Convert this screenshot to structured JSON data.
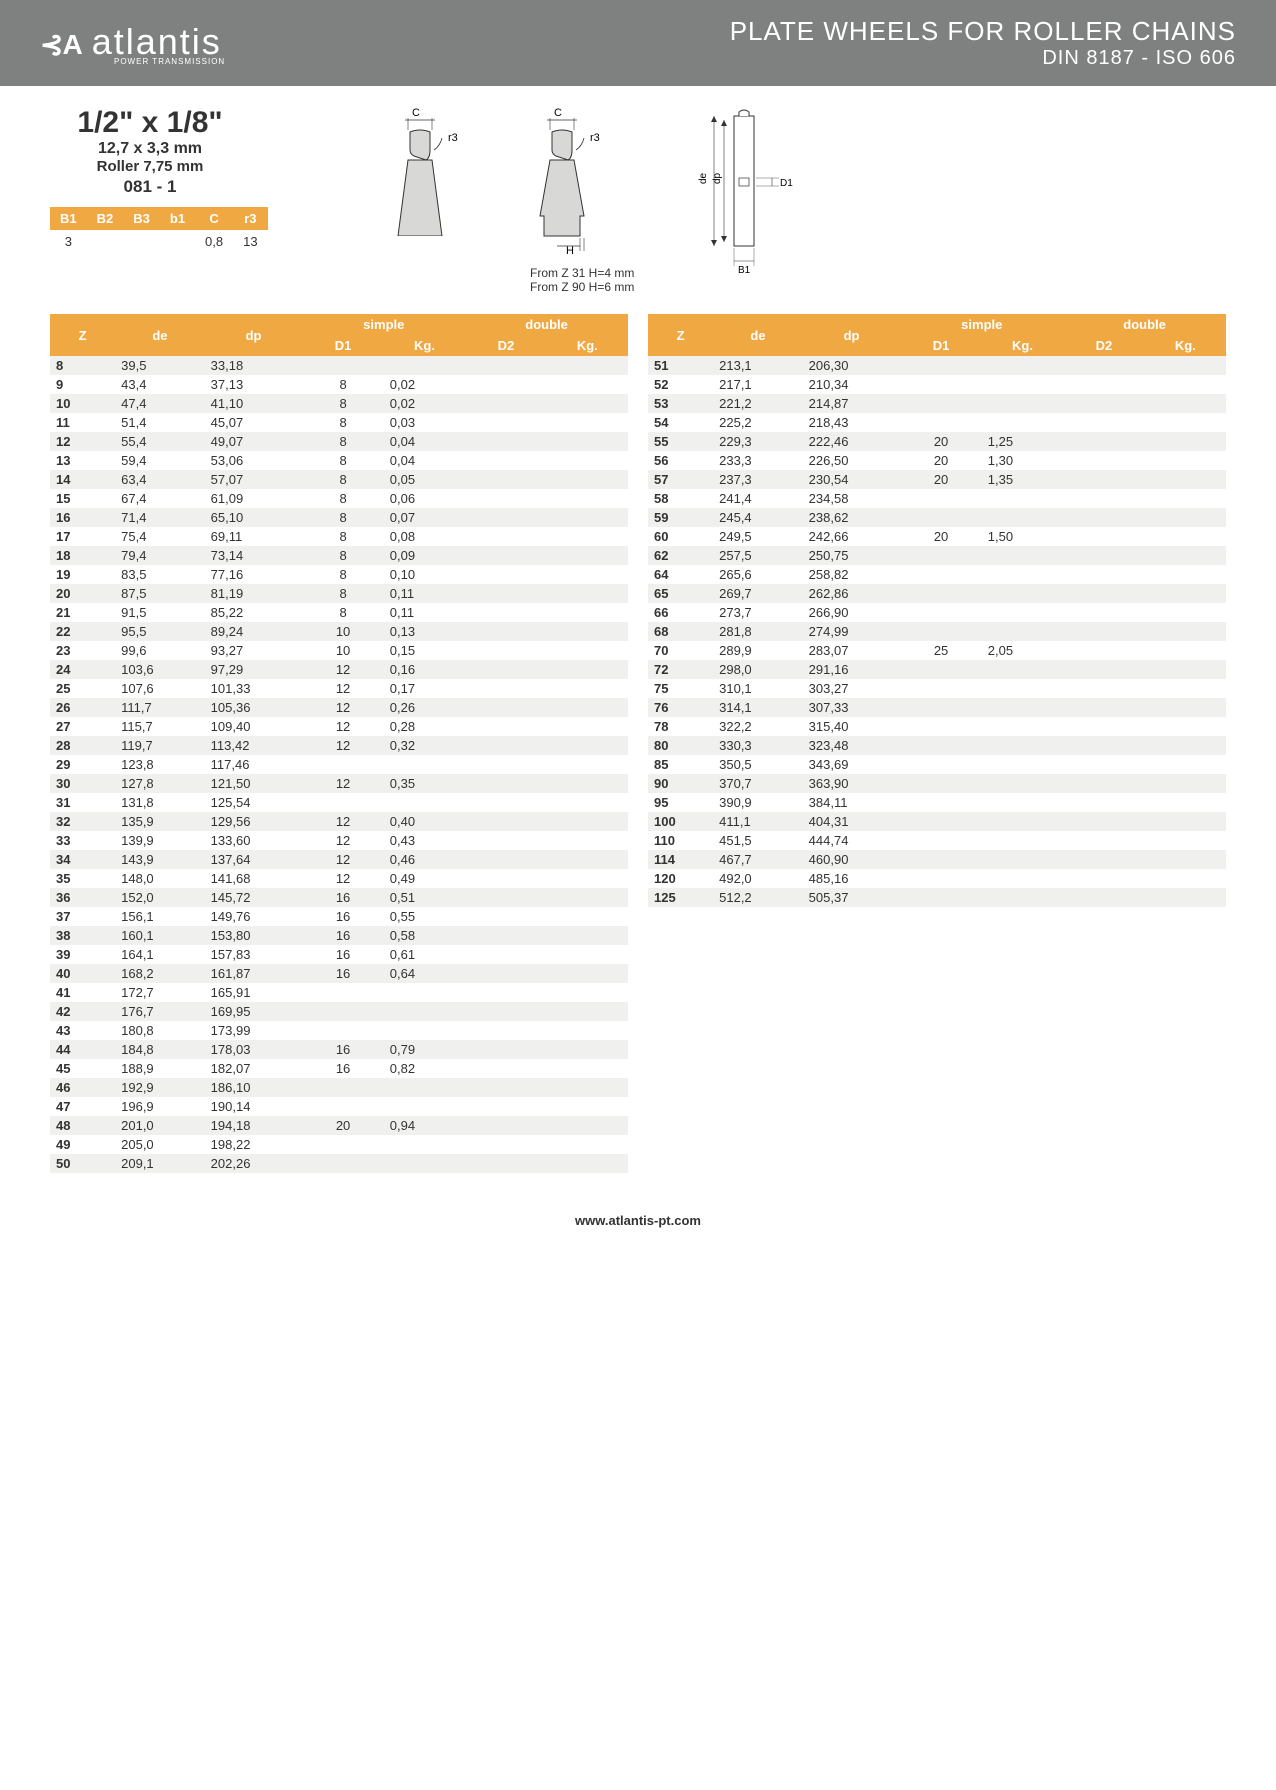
{
  "header": {
    "logo_mark": "⊰A",
    "logo_text": "atlantis",
    "logo_sub": "POWER TRANSMISSION",
    "title": "PLATE WHEELS FOR ROLLER CHAINS",
    "subtitle": "DIN 8187 - ISO 606"
  },
  "spec": {
    "main": "1/2\" x 1/8\"",
    "sub": "12,7 x 3,3 mm",
    "roller": "Roller 7,75 mm",
    "code": "081 - 1"
  },
  "diagram_labels": {
    "c": "C",
    "r3": "r3",
    "h": "H",
    "de": "de",
    "dp": "dp",
    "d1": "D1",
    "b1": "B1",
    "note1": "From Z 31 H=4 mm",
    "note2": "From Z 90 H=6 mm"
  },
  "params": {
    "headers": [
      "B1",
      "B2",
      "B3",
      "b1",
      "C",
      "r3"
    ],
    "values": [
      "3",
      "",
      "",
      "",
      "0,8",
      "13"
    ]
  },
  "table_headers": {
    "z": "Z",
    "de": "de",
    "dp": "dp",
    "simple": "simple",
    "double": "double",
    "d1": "D1",
    "kg": "Kg.",
    "d2": "D2"
  },
  "table_left": [
    {
      "z": "8",
      "de": "39,5",
      "dp": "33,18",
      "d1": "",
      "kg": ""
    },
    {
      "z": "9",
      "de": "43,4",
      "dp": "37,13",
      "d1": "8",
      "kg": "0,02"
    },
    {
      "z": "10",
      "de": "47,4",
      "dp": "41,10",
      "d1": "8",
      "kg": "0,02"
    },
    {
      "z": "11",
      "de": "51,4",
      "dp": "45,07",
      "d1": "8",
      "kg": "0,03"
    },
    {
      "z": "12",
      "de": "55,4",
      "dp": "49,07",
      "d1": "8",
      "kg": "0,04"
    },
    {
      "z": "13",
      "de": "59,4",
      "dp": "53,06",
      "d1": "8",
      "kg": "0,04"
    },
    {
      "z": "14",
      "de": "63,4",
      "dp": "57,07",
      "d1": "8",
      "kg": "0,05"
    },
    {
      "z": "15",
      "de": "67,4",
      "dp": "61,09",
      "d1": "8",
      "kg": "0,06"
    },
    {
      "z": "16",
      "de": "71,4",
      "dp": "65,10",
      "d1": "8",
      "kg": "0,07"
    },
    {
      "z": "17",
      "de": "75,4",
      "dp": "69,11",
      "d1": "8",
      "kg": "0,08"
    },
    {
      "z": "18",
      "de": "79,4",
      "dp": "73,14",
      "d1": "8",
      "kg": "0,09"
    },
    {
      "z": "19",
      "de": "83,5",
      "dp": "77,16",
      "d1": "8",
      "kg": "0,10"
    },
    {
      "z": "20",
      "de": "87,5",
      "dp": "81,19",
      "d1": "8",
      "kg": "0,11"
    },
    {
      "z": "21",
      "de": "91,5",
      "dp": "85,22",
      "d1": "8",
      "kg": "0,11"
    },
    {
      "z": "22",
      "de": "95,5",
      "dp": "89,24",
      "d1": "10",
      "kg": "0,13"
    },
    {
      "z": "23",
      "de": "99,6",
      "dp": "93,27",
      "d1": "10",
      "kg": "0,15"
    },
    {
      "z": "24",
      "de": "103,6",
      "dp": "97,29",
      "d1": "12",
      "kg": "0,16"
    },
    {
      "z": "25",
      "de": "107,6",
      "dp": "101,33",
      "d1": "12",
      "kg": "0,17"
    },
    {
      "z": "26",
      "de": "111,7",
      "dp": "105,36",
      "d1": "12",
      "kg": "0,26"
    },
    {
      "z": "27",
      "de": "115,7",
      "dp": "109,40",
      "d1": "12",
      "kg": "0,28"
    },
    {
      "z": "28",
      "de": "119,7",
      "dp": "113,42",
      "d1": "12",
      "kg": "0,32"
    },
    {
      "z": "29",
      "de": "123,8",
      "dp": "117,46",
      "d1": "",
      "kg": ""
    },
    {
      "z": "30",
      "de": "127,8",
      "dp": "121,50",
      "d1": "12",
      "kg": "0,35"
    },
    {
      "z": "31",
      "de": "131,8",
      "dp": "125,54",
      "d1": "",
      "kg": ""
    },
    {
      "z": "32",
      "de": "135,9",
      "dp": "129,56",
      "d1": "12",
      "kg": "0,40"
    },
    {
      "z": "33",
      "de": "139,9",
      "dp": "133,60",
      "d1": "12",
      "kg": "0,43"
    },
    {
      "z": "34",
      "de": "143,9",
      "dp": "137,64",
      "d1": "12",
      "kg": "0,46"
    },
    {
      "z": "35",
      "de": "148,0",
      "dp": "141,68",
      "d1": "12",
      "kg": "0,49"
    },
    {
      "z": "36",
      "de": "152,0",
      "dp": "145,72",
      "d1": "16",
      "kg": "0,51"
    },
    {
      "z": "37",
      "de": "156,1",
      "dp": "149,76",
      "d1": "16",
      "kg": "0,55"
    },
    {
      "z": "38",
      "de": "160,1",
      "dp": "153,80",
      "d1": "16",
      "kg": "0,58"
    },
    {
      "z": "39",
      "de": "164,1",
      "dp": "157,83",
      "d1": "16",
      "kg": "0,61"
    },
    {
      "z": "40",
      "de": "168,2",
      "dp": "161,87",
      "d1": "16",
      "kg": "0,64"
    },
    {
      "z": "41",
      "de": "172,7",
      "dp": "165,91",
      "d1": "",
      "kg": ""
    },
    {
      "z": "42",
      "de": "176,7",
      "dp": "169,95",
      "d1": "",
      "kg": ""
    },
    {
      "z": "43",
      "de": "180,8",
      "dp": "173,99",
      "d1": "",
      "kg": ""
    },
    {
      "z": "44",
      "de": "184,8",
      "dp": "178,03",
      "d1": "16",
      "kg": "0,79"
    },
    {
      "z": "45",
      "de": "188,9",
      "dp": "182,07",
      "d1": "16",
      "kg": "0,82"
    },
    {
      "z": "46",
      "de": "192,9",
      "dp": "186,10",
      "d1": "",
      "kg": ""
    },
    {
      "z": "47",
      "de": "196,9",
      "dp": "190,14",
      "d1": "",
      "kg": ""
    },
    {
      "z": "48",
      "de": "201,0",
      "dp": "194,18",
      "d1": "20",
      "kg": "0,94"
    },
    {
      "z": "49",
      "de": "205,0",
      "dp": "198,22",
      "d1": "",
      "kg": ""
    },
    {
      "z": "50",
      "de": "209,1",
      "dp": "202,26",
      "d1": "",
      "kg": ""
    }
  ],
  "table_right": [
    {
      "z": "51",
      "de": "213,1",
      "dp": "206,30",
      "d1": "",
      "kg": ""
    },
    {
      "z": "52",
      "de": "217,1",
      "dp": "210,34",
      "d1": "",
      "kg": ""
    },
    {
      "z": "53",
      "de": "221,2",
      "dp": "214,87",
      "d1": "",
      "kg": ""
    },
    {
      "z": "54",
      "de": "225,2",
      "dp": "218,43",
      "d1": "",
      "kg": ""
    },
    {
      "z": "55",
      "de": "229,3",
      "dp": "222,46",
      "d1": "20",
      "kg": "1,25"
    },
    {
      "z": "56",
      "de": "233,3",
      "dp": "226,50",
      "d1": "20",
      "kg": "1,30"
    },
    {
      "z": "57",
      "de": "237,3",
      "dp": "230,54",
      "d1": "20",
      "kg": "1,35"
    },
    {
      "z": "58",
      "de": "241,4",
      "dp": "234,58",
      "d1": "",
      "kg": ""
    },
    {
      "z": "59",
      "de": "245,4",
      "dp": "238,62",
      "d1": "",
      "kg": ""
    },
    {
      "z": "60",
      "de": "249,5",
      "dp": "242,66",
      "d1": "20",
      "kg": "1,50"
    },
    {
      "z": "62",
      "de": "257,5",
      "dp": "250,75",
      "d1": "",
      "kg": ""
    },
    {
      "z": "64",
      "de": "265,6",
      "dp": "258,82",
      "d1": "",
      "kg": ""
    },
    {
      "z": "65",
      "de": "269,7",
      "dp": "262,86",
      "d1": "",
      "kg": ""
    },
    {
      "z": "66",
      "de": "273,7",
      "dp": "266,90",
      "d1": "",
      "kg": ""
    },
    {
      "z": "68",
      "de": "281,8",
      "dp": "274,99",
      "d1": "",
      "kg": ""
    },
    {
      "z": "70",
      "de": "289,9",
      "dp": "283,07",
      "d1": "25",
      "kg": "2,05"
    },
    {
      "z": "72",
      "de": "298,0",
      "dp": "291,16",
      "d1": "",
      "kg": ""
    },
    {
      "z": "75",
      "de": "310,1",
      "dp": "303,27",
      "d1": "",
      "kg": ""
    },
    {
      "z": "76",
      "de": "314,1",
      "dp": "307,33",
      "d1": "",
      "kg": ""
    },
    {
      "z": "78",
      "de": "322,2",
      "dp": "315,40",
      "d1": "",
      "kg": ""
    },
    {
      "z": "80",
      "de": "330,3",
      "dp": "323,48",
      "d1": "",
      "kg": ""
    },
    {
      "z": "85",
      "de": "350,5",
      "dp": "343,69",
      "d1": "",
      "kg": ""
    },
    {
      "z": "90",
      "de": "370,7",
      "dp": "363,90",
      "d1": "",
      "kg": ""
    },
    {
      "z": "95",
      "de": "390,9",
      "dp": "384,11",
      "d1": "",
      "kg": ""
    },
    {
      "z": "100",
      "de": "411,1",
      "dp": "404,31",
      "d1": "",
      "kg": ""
    },
    {
      "z": "110",
      "de": "451,5",
      "dp": "444,74",
      "d1": "",
      "kg": ""
    },
    {
      "z": "114",
      "de": "467,7",
      "dp": "460,90",
      "d1": "",
      "kg": ""
    },
    {
      "z": "120",
      "de": "492,0",
      "dp": "485,16",
      "d1": "",
      "kg": ""
    },
    {
      "z": "125",
      "de": "512,2",
      "dp": "505,37",
      "d1": "",
      "kg": ""
    }
  ],
  "footer": {
    "url": "www.atlantis-pt.com"
  },
  "colors": {
    "header_bg": "#7f8080",
    "accent": "#f0a843",
    "row_alt": "#f0f0ee",
    "text": "#333333"
  }
}
